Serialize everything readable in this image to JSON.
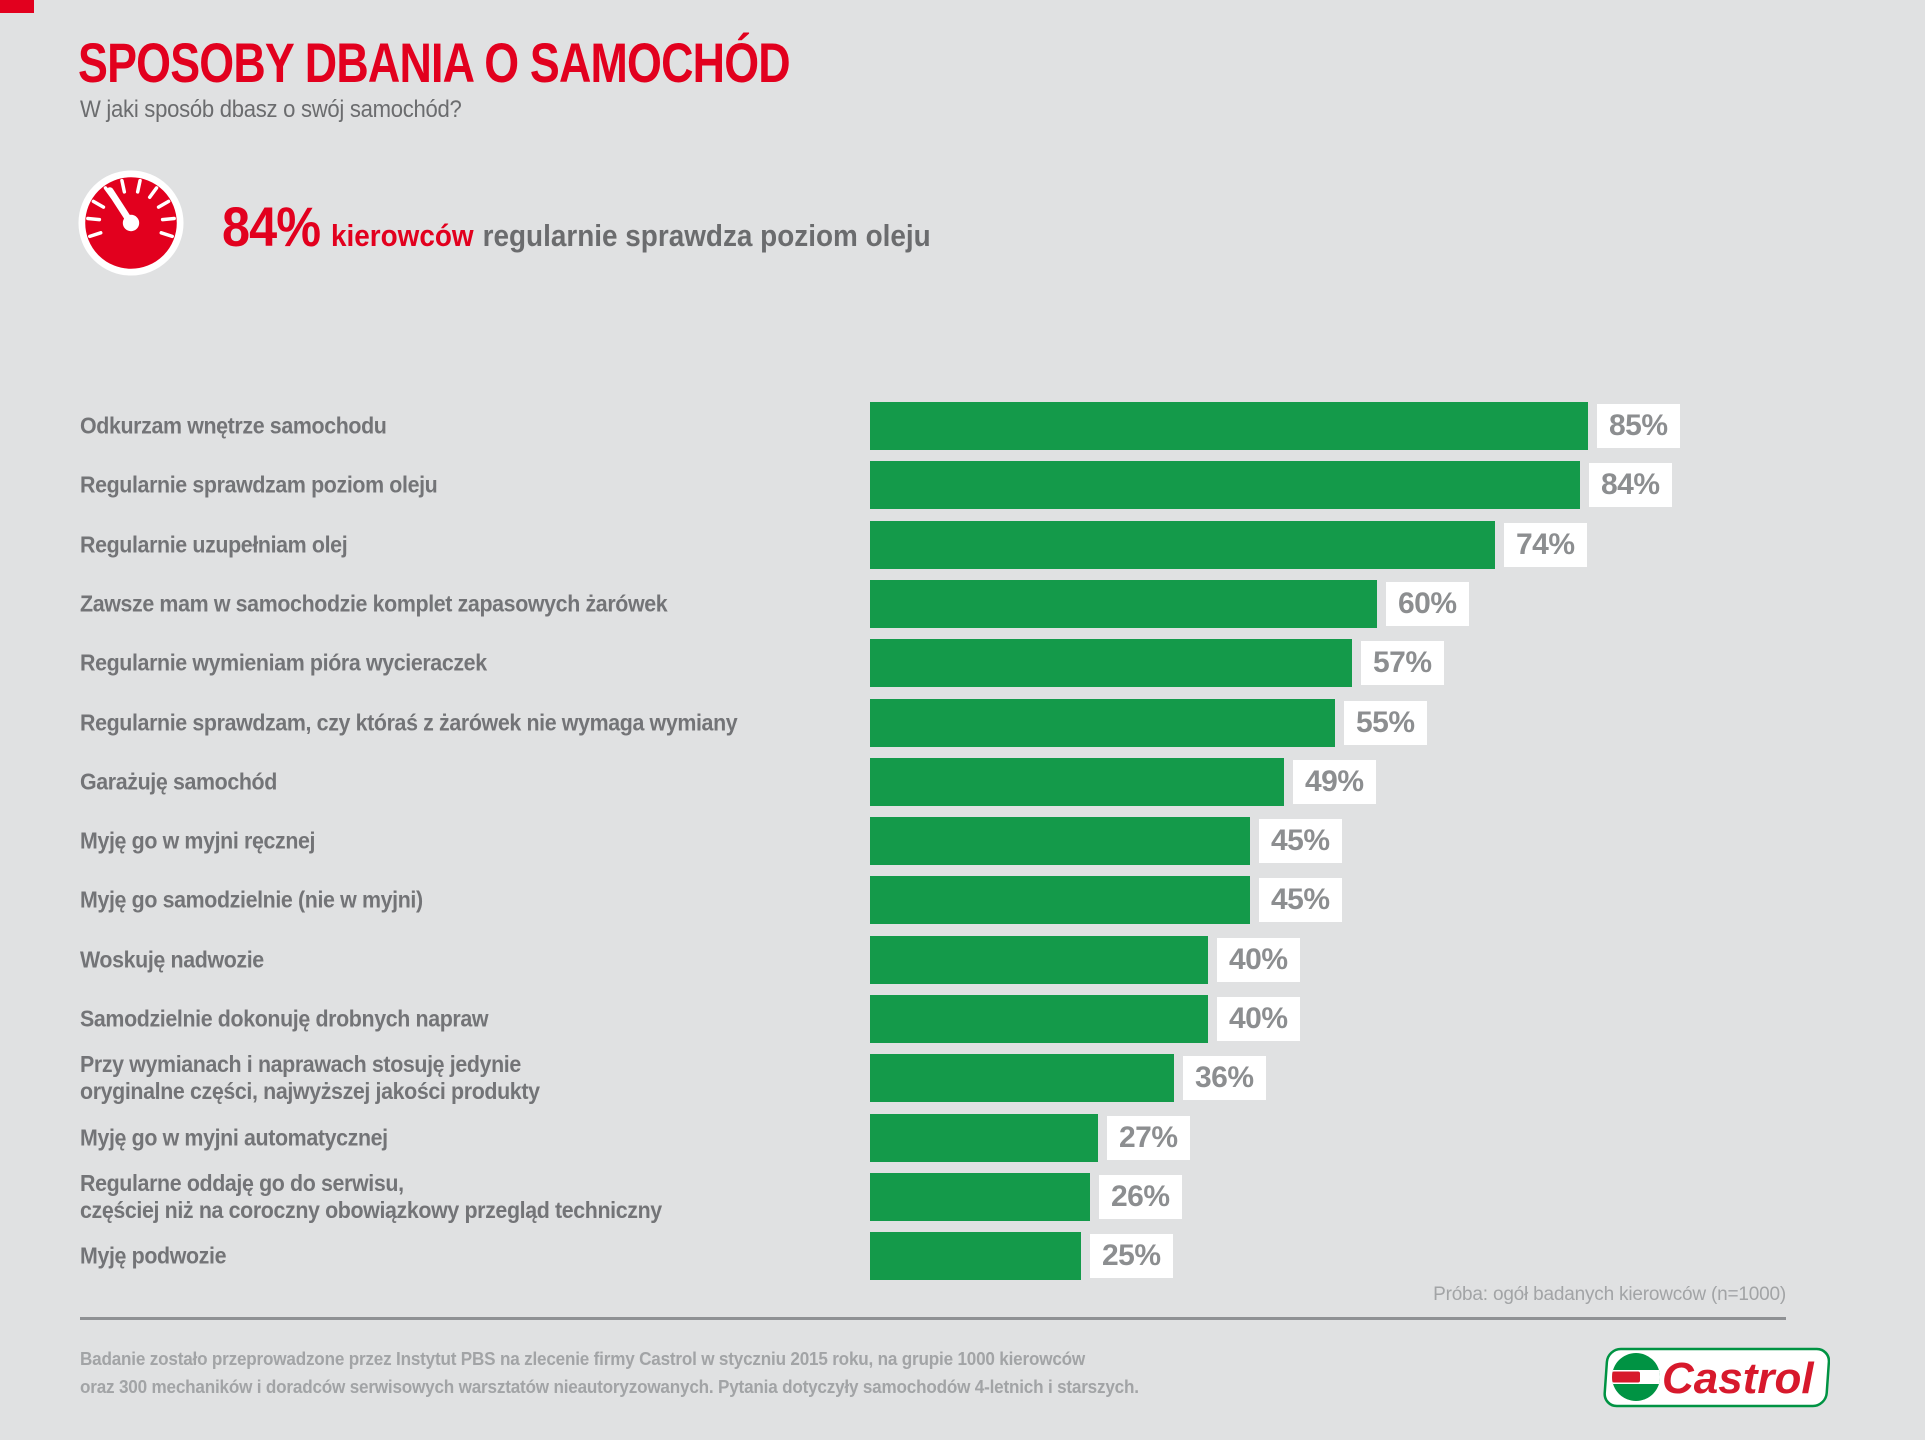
{
  "header": {
    "title": "SPOSOBY DBANIA O SAMOCHÓD",
    "subtitle": "W jaki sposób dbasz o swój samochód?"
  },
  "highlight": {
    "icon": "speedometer-gauge-icon",
    "value": "84%",
    "emphasis": "kierowców",
    "rest": "regularnie sprawdza poziom oleju"
  },
  "chart_data": {
    "type": "bar",
    "orientation": "horizontal",
    "title": "SPOSOBY DBANIA O SAMOCHÓD",
    "unit": "%",
    "xlim": [
      0,
      100
    ],
    "grid": false,
    "legend": false,
    "bar_color": "#149a4a",
    "value_label_style": "white box, gray text, right of bar",
    "categories": [
      "Odkurzam wnętrze samochodu",
      "Regularnie sprawdzam poziom oleju",
      "Regularnie uzupełniam olej",
      "Zawsze mam w samochodzie komplet zapasowych żarówek",
      "Regularnie wymieniam pióra wycieraczek",
      "Regularnie sprawdzam, czy któraś z żarówek nie wymaga wymiany",
      "Garażuję samochód",
      "Myję go w myjni ręcznej",
      "Myję go samodzielnie (nie w myjni)",
      "Woskuję nadwozie",
      "Samodzielnie dokonuję drobnych napraw",
      "Przy wymianach i naprawach stosuję jedynie\noryginalne części, najwyższej jakości produkty",
      "Myję go w myjni automatycznej",
      "Regularne oddaję go do serwisu,\nczęściej niż na coroczny obowiązkowy przegląd techniczny",
      "Myję podwozie"
    ],
    "values": [
      85,
      84,
      74,
      60,
      57,
      55,
      49,
      45,
      45,
      40,
      40,
      36,
      27,
      26,
      25
    ],
    "sample_note": "Próba: ogół badanych kierowców (n=1000)"
  },
  "footer": {
    "line1": "Badanie zostało przeprowadzone przez Instytut PBS na zlecenie firmy Castrol w styczniu 2015 roku, na grupie 1000 kierowców",
    "line2": "oraz 300 mechaników i doradców serwisowych warsztatów nieautoryzowanych. Pytania dotyczyły samochodów 4-letnich i starszych.",
    "logo_text": "Castrol"
  },
  "colors": {
    "background": "#e0e1e2",
    "accent_red": "#e2001e",
    "bar_green": "#149a4a",
    "label_gray": "#737477",
    "value_gray": "#8c8e90",
    "footer_gray": "#a2a4a6",
    "castrol_green": "#009343",
    "castrol_red": "#d7192c"
  }
}
